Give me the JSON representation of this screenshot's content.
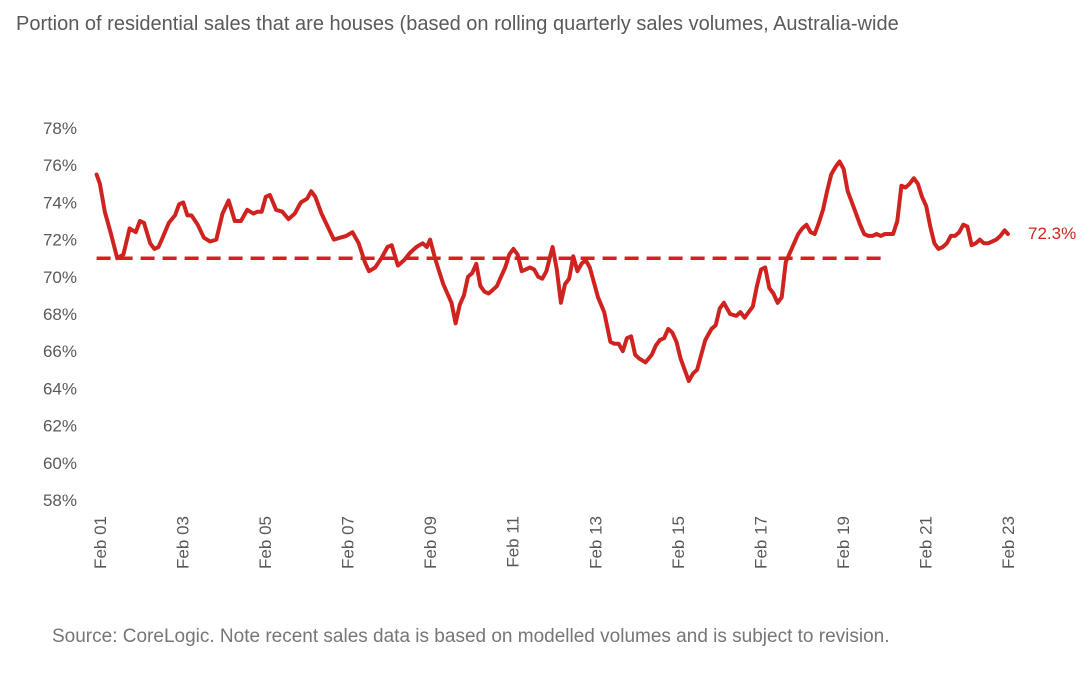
{
  "title": "Portion of residential sales that are houses (based on rolling quarterly sales volumes, Australia-wide",
  "source": "Source: CoreLogic. Note recent sales data is based on modelled volumes and is subject to revision.",
  "colors": {
    "series": "#D0231F",
    "text": "#595959",
    "source": "#767676"
  },
  "chart_data": {
    "type": "line",
    "title": "Portion of residential sales that are houses (based on rolling quarterly sales volumes, Australia-wide",
    "xlabel": "",
    "ylabel": "",
    "ylim": [
      58,
      78
    ],
    "yticks": [
      58,
      60,
      62,
      64,
      66,
      68,
      70,
      72,
      74,
      76,
      78
    ],
    "ytick_labels": [
      "58%",
      "60%",
      "62%",
      "64%",
      "66%",
      "68%",
      "70%",
      "72%",
      "74%",
      "76%",
      "78%"
    ],
    "x_range": [
      2001.083,
      2023.083
    ],
    "xticks": [
      2001.083,
      2003.083,
      2005.083,
      2007.083,
      2009.083,
      2011.083,
      2013.083,
      2015.083,
      2017.083,
      2019.083,
      2021.083,
      2023.083
    ],
    "xtick_labels": [
      "Feb 01",
      "Feb 03",
      "Feb 05",
      "Feb 07",
      "Feb 09",
      "Feb 11",
      "Feb 13",
      "Feb 15",
      "Feb 17",
      "Feb 19",
      "Feb 21",
      "Feb 23"
    ],
    "grid": false,
    "legend": "none",
    "end_label": "72.3%",
    "series": [
      {
        "style": "solid",
        "x": [
          2001.0,
          2001.08,
          2001.2,
          2001.35,
          2001.5,
          2001.65,
          2001.8,
          2001.95,
          2002.05,
          2002.15,
          2002.3,
          2002.4,
          2002.5,
          2002.6,
          2002.75,
          2002.9,
          2003.0,
          2003.1,
          2003.2,
          2003.3,
          2003.45,
          2003.6,
          2003.75,
          2003.9,
          2004.05,
          2004.2,
          2004.35,
          2004.5,
          2004.65,
          2004.8,
          2004.9,
          2005.0,
          2005.1,
          2005.2,
          2005.35,
          2005.5,
          2005.65,
          2005.8,
          2005.95,
          2006.1,
          2006.2,
          2006.3,
          2006.45,
          2006.6,
          2006.75,
          2006.9,
          2007.05,
          2007.2,
          2007.35,
          2007.5,
          2007.6,
          2007.75,
          2007.9,
          2008.05,
          2008.15,
          2008.3,
          2008.45,
          2008.6,
          2008.75,
          2008.9,
          2009.0,
          2009.08,
          2009.2,
          2009.3,
          2009.4,
          2009.5,
          2009.6,
          2009.7,
          2009.8,
          2009.9,
          2010.0,
          2010.1,
          2010.2,
          2010.3,
          2010.4,
          2010.5,
          2010.6,
          2010.7,
          2010.8,
          2010.9,
          2011.0,
          2011.1,
          2011.2,
          2011.3,
          2011.4,
          2011.5,
          2011.6,
          2011.7,
          2011.8,
          2011.9,
          2012.0,
          2012.05,
          2012.15,
          2012.25,
          2012.35,
          2012.45,
          2012.55,
          2012.65,
          2012.75,
          2012.85,
          2012.95,
          2013.05,
          2013.15,
          2013.3,
          2013.45,
          2013.55,
          2013.65,
          2013.75,
          2013.85,
          2013.95,
          2014.05,
          2014.15,
          2014.3,
          2014.45,
          2014.55,
          2014.65,
          2014.75,
          2014.85,
          2014.95,
          2015.05,
          2015.15,
          2015.25,
          2015.35,
          2015.45,
          2015.55,
          2015.65,
          2015.75,
          2015.9,
          2016.0,
          2016.1,
          2016.2,
          2016.35,
          2016.5,
          2016.6,
          2016.7,
          2016.8,
          2016.9,
          2017.0,
          2017.1,
          2017.2,
          2017.3,
          2017.4,
          2017.5,
          2017.6,
          2017.7,
          2017.8,
          2017.9,
          2018.0,
          2018.1,
          2018.2,
          2018.3,
          2018.4,
          2018.5,
          2018.6,
          2018.7,
          2018.8,
          2018.9,
          2019.0,
          2019.1,
          2019.2,
          2019.3,
          2019.4,
          2019.5,
          2019.6,
          2019.7,
          2019.8,
          2019.9,
          2020.0,
          2020.1,
          2020.2,
          2020.3,
          2020.4,
          2020.5,
          2020.6,
          2020.7,
          2020.8,
          2020.9,
          2021.0,
          2021.1,
          2021.2,
          2021.3,
          2021.4,
          2021.5,
          2021.6,
          2021.7,
          2021.8,
          2021.9,
          2022.0,
          2022.1,
          2022.2,
          2022.3,
          2022.4,
          2022.5,
          2022.6,
          2022.7,
          2022.8,
          2022.9,
          2023.0,
          2023.08
        ],
        "y": [
          75.5,
          75.0,
          73.5,
          72.3,
          71.0,
          71.2,
          72.6,
          72.4,
          73.0,
          72.9,
          71.8,
          71.5,
          71.6,
          72.1,
          72.9,
          73.3,
          73.9,
          74.0,
          73.3,
          73.3,
          72.8,
          72.1,
          71.9,
          72.0,
          73.4,
          74.1,
          73.0,
          73.0,
          73.6,
          73.4,
          73.5,
          73.5,
          74.3,
          74.4,
          73.6,
          73.5,
          73.1,
          73.4,
          74.0,
          74.2,
          74.6,
          74.3,
          73.4,
          72.7,
          72.0,
          72.1,
          72.2,
          72.4,
          71.8,
          70.8,
          70.3,
          70.5,
          71.0,
          71.6,
          71.7,
          70.6,
          70.9,
          71.3,
          71.6,
          71.8,
          71.6,
          72.0,
          71.0,
          70.3,
          69.6,
          69.1,
          68.6,
          67.5,
          68.5,
          69.0,
          70.0,
          70.2,
          70.7,
          69.5,
          69.2,
          69.1,
          69.3,
          69.5,
          70.0,
          70.5,
          71.2,
          71.5,
          71.2,
          70.3,
          70.4,
          70.5,
          70.4,
          70.0,
          69.9,
          70.3,
          71.2,
          71.6,
          70.4,
          68.6,
          69.6,
          69.9,
          71.1,
          70.3,
          70.7,
          70.9,
          70.5,
          69.7,
          68.9,
          68.1,
          66.5,
          66.4,
          66.4,
          66.0,
          66.7,
          66.8,
          65.8,
          65.6,
          65.4,
          65.8,
          66.3,
          66.6,
          66.7,
          67.2,
          67.0,
          66.5,
          65.6,
          65.0,
          64.4,
          64.8,
          65.0,
          65.8,
          66.6,
          67.2,
          67.4,
          68.3,
          68.6,
          68.0,
          67.9,
          68.1,
          67.8,
          68.1,
          68.4,
          69.5,
          70.4,
          70.5,
          69.4,
          69.1,
          68.6,
          68.9,
          70.8,
          71.3,
          71.8,
          72.3,
          72.6,
          72.8,
          72.4,
          72.3,
          72.9,
          73.6,
          74.6,
          75.5,
          75.9,
          76.2,
          75.8,
          74.6,
          74.0,
          73.4,
          72.8,
          72.3,
          72.2,
          72.2,
          72.3,
          72.2,
          72.3,
          72.3,
          72.3,
          73.0,
          74.9,
          74.8,
          75.0,
          75.3,
          75.0,
          74.3,
          73.8,
          72.7,
          71.8,
          71.5,
          71.6,
          71.8,
          72.2,
          72.2,
          72.4,
          72.8,
          72.7,
          71.7,
          71.8,
          72.0,
          71.8,
          71.8,
          71.9,
          72.0,
          72.2,
          72.5,
          72.3
        ]
      },
      {
        "style": "dashed",
        "x": [
          2001.0,
          2020.0
        ],
        "y": [
          71.0,
          71.0
        ]
      }
    ]
  }
}
